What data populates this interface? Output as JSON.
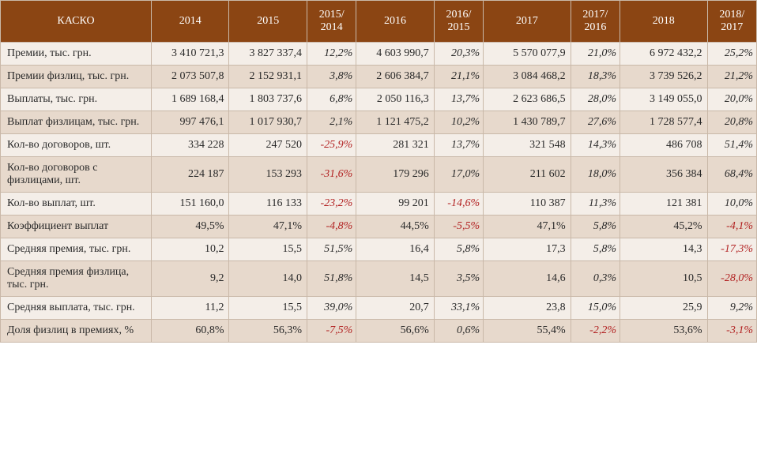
{
  "title": "КАСКО",
  "columns": [
    "2014",
    "2015",
    "2015/ 2014",
    "2016",
    "2016/ 2015",
    "2017",
    "2017/ 2016",
    "2018",
    "2018/ 2017"
  ],
  "colors": {
    "header_bg": "#8b4513",
    "header_fg": "#ffffff",
    "row_odd": "#f4eee8",
    "row_even": "#e7d9cc",
    "border": "#c9b8a8",
    "text": "#2a2a2a",
    "negative": "#b22222"
  },
  "rows": [
    {
      "label": "Премии, тыс. грн.",
      "cells": [
        {
          "v": "3 410 721,3",
          "t": "val"
        },
        {
          "v": "3 827 337,4",
          "t": "val"
        },
        {
          "v": "12,2%",
          "t": "pct",
          "neg": false
        },
        {
          "v": "4 603 990,7",
          "t": "val"
        },
        {
          "v": "20,3%",
          "t": "pct",
          "neg": false
        },
        {
          "v": "5 570 077,9",
          "t": "val"
        },
        {
          "v": "21,0%",
          "t": "pct",
          "neg": false
        },
        {
          "v": "6 972 432,2",
          "t": "val"
        },
        {
          "v": "25,2%",
          "t": "pct",
          "neg": false
        }
      ]
    },
    {
      "label": "Премии физлиц, тыс. грн.",
      "cells": [
        {
          "v": "2 073 507,8",
          "t": "val"
        },
        {
          "v": "2 152 931,1",
          "t": "val"
        },
        {
          "v": "3,8%",
          "t": "pct",
          "neg": false
        },
        {
          "v": "2 606 384,7",
          "t": "val"
        },
        {
          "v": "21,1%",
          "t": "pct",
          "neg": false
        },
        {
          "v": "3 084 468,2",
          "t": "val"
        },
        {
          "v": "18,3%",
          "t": "pct",
          "neg": false
        },
        {
          "v": "3 739 526,2",
          "t": "val"
        },
        {
          "v": "21,2%",
          "t": "pct",
          "neg": false
        }
      ]
    },
    {
      "label": "Выплаты, тыс. грн.",
      "cells": [
        {
          "v": "1 689 168,4",
          "t": "val"
        },
        {
          "v": "1 803 737,6",
          "t": "val"
        },
        {
          "v": "6,8%",
          "t": "pct",
          "neg": false
        },
        {
          "v": "2 050 116,3",
          "t": "val"
        },
        {
          "v": "13,7%",
          "t": "pct",
          "neg": false
        },
        {
          "v": "2 623 686,5",
          "t": "val"
        },
        {
          "v": "28,0%",
          "t": "pct",
          "neg": false
        },
        {
          "v": "3 149 055,0",
          "t": "val"
        },
        {
          "v": "20,0%",
          "t": "pct",
          "neg": false
        }
      ]
    },
    {
      "label": "Выплат физлицам, тыс. грн.",
      "cells": [
        {
          "v": "997 476,1",
          "t": "val"
        },
        {
          "v": "1 017 930,7",
          "t": "val"
        },
        {
          "v": "2,1%",
          "t": "pct",
          "neg": false
        },
        {
          "v": "1 121 475,2",
          "t": "val"
        },
        {
          "v": "10,2%",
          "t": "pct",
          "neg": false
        },
        {
          "v": "1 430 789,7",
          "t": "val"
        },
        {
          "v": "27,6%",
          "t": "pct",
          "neg": false
        },
        {
          "v": "1 728 577,4",
          "t": "val"
        },
        {
          "v": "20,8%",
          "t": "pct",
          "neg": false
        }
      ]
    },
    {
      "label": "Кол-во договоров, шт.",
      "cells": [
        {
          "v": "334 228",
          "t": "val"
        },
        {
          "v": "247 520",
          "t": "val"
        },
        {
          "v": "-25,9%",
          "t": "pct",
          "neg": true
        },
        {
          "v": "281 321",
          "t": "val"
        },
        {
          "v": "13,7%",
          "t": "pct",
          "neg": false
        },
        {
          "v": "321 548",
          "t": "val"
        },
        {
          "v": "14,3%",
          "t": "pct",
          "neg": false
        },
        {
          "v": "486 708",
          "t": "val"
        },
        {
          "v": "51,4%",
          "t": "pct",
          "neg": false
        }
      ]
    },
    {
      "label": "Кол-во договоров с физлицами, шт.",
      "cells": [
        {
          "v": "224 187",
          "t": "val"
        },
        {
          "v": "153 293",
          "t": "val"
        },
        {
          "v": "-31,6%",
          "t": "pct",
          "neg": true
        },
        {
          "v": "179 296",
          "t": "val"
        },
        {
          "v": "17,0%",
          "t": "pct",
          "neg": false
        },
        {
          "v": "211 602",
          "t": "val"
        },
        {
          "v": "18,0%",
          "t": "pct",
          "neg": false
        },
        {
          "v": "356 384",
          "t": "val"
        },
        {
          "v": "68,4%",
          "t": "pct",
          "neg": false
        }
      ]
    },
    {
      "label": "Кол-во выплат, шт.",
      "cells": [
        {
          "v": "151 160,0",
          "t": "val"
        },
        {
          "v": "116 133",
          "t": "val"
        },
        {
          "v": "-23,2%",
          "t": "pct",
          "neg": true
        },
        {
          "v": "99 201",
          "t": "val"
        },
        {
          "v": "-14,6%",
          "t": "pct",
          "neg": true
        },
        {
          "v": "110 387",
          "t": "val"
        },
        {
          "v": "11,3%",
          "t": "pct",
          "neg": false
        },
        {
          "v": "121 381",
          "t": "val"
        },
        {
          "v": "10,0%",
          "t": "pct",
          "neg": false
        }
      ]
    },
    {
      "label": "Коэффициент выплат",
      "cells": [
        {
          "v": "49,5%",
          "t": "val"
        },
        {
          "v": "47,1%",
          "t": "val"
        },
        {
          "v": "-4,8%",
          "t": "pct",
          "neg": true
        },
        {
          "v": "44,5%",
          "t": "val"
        },
        {
          "v": "-5,5%",
          "t": "pct",
          "neg": true
        },
        {
          "v": "47,1%",
          "t": "val"
        },
        {
          "v": "5,8%",
          "t": "pct",
          "neg": false
        },
        {
          "v": "45,2%",
          "t": "val"
        },
        {
          "v": "-4,1%",
          "t": "pct",
          "neg": true
        }
      ]
    },
    {
      "label": "Средняя премия, тыс. грн.",
      "cells": [
        {
          "v": "10,2",
          "t": "val"
        },
        {
          "v": "15,5",
          "t": "val"
        },
        {
          "v": "51,5%",
          "t": "pct",
          "neg": false
        },
        {
          "v": "16,4",
          "t": "val"
        },
        {
          "v": "5,8%",
          "t": "pct",
          "neg": false
        },
        {
          "v": "17,3",
          "t": "val"
        },
        {
          "v": "5,8%",
          "t": "pct",
          "neg": false
        },
        {
          "v": "14,3",
          "t": "val"
        },
        {
          "v": "-17,3%",
          "t": "pct",
          "neg": true
        }
      ]
    },
    {
      "label": "Средняя премия физлица, тыс. грн.",
      "cells": [
        {
          "v": "9,2",
          "t": "val"
        },
        {
          "v": "14,0",
          "t": "val"
        },
        {
          "v": "51,8%",
          "t": "pct",
          "neg": false
        },
        {
          "v": "14,5",
          "t": "val"
        },
        {
          "v": "3,5%",
          "t": "pct",
          "neg": false
        },
        {
          "v": "14,6",
          "t": "val"
        },
        {
          "v": "0,3%",
          "t": "pct",
          "neg": false
        },
        {
          "v": "10,5",
          "t": "val"
        },
        {
          "v": "-28,0%",
          "t": "pct",
          "neg": true
        }
      ]
    },
    {
      "label": "Средняя выплата, тыс. грн.",
      "cells": [
        {
          "v": "11,2",
          "t": "val"
        },
        {
          "v": "15,5",
          "t": "val"
        },
        {
          "v": "39,0%",
          "t": "pct",
          "neg": false
        },
        {
          "v": "20,7",
          "t": "val"
        },
        {
          "v": "33,1%",
          "t": "pct",
          "neg": false
        },
        {
          "v": "23,8",
          "t": "val"
        },
        {
          "v": "15,0%",
          "t": "pct",
          "neg": false
        },
        {
          "v": "25,9",
          "t": "val"
        },
        {
          "v": "9,2%",
          "t": "pct",
          "neg": false
        }
      ]
    },
    {
      "label": "Доля физлиц в премиях, %",
      "cells": [
        {
          "v": "60,8%",
          "t": "val"
        },
        {
          "v": "56,3%",
          "t": "val"
        },
        {
          "v": "-7,5%",
          "t": "pct",
          "neg": true
        },
        {
          "v": "56,6%",
          "t": "val"
        },
        {
          "v": "0,6%",
          "t": "pct",
          "neg": false
        },
        {
          "v": "55,4%",
          "t": "val"
        },
        {
          "v": "-2,2%",
          "t": "pct",
          "neg": true
        },
        {
          "v": "53,6%",
          "t": "val"
        },
        {
          "v": "-3,1%",
          "t": "pct",
          "neg": true
        }
      ]
    }
  ]
}
